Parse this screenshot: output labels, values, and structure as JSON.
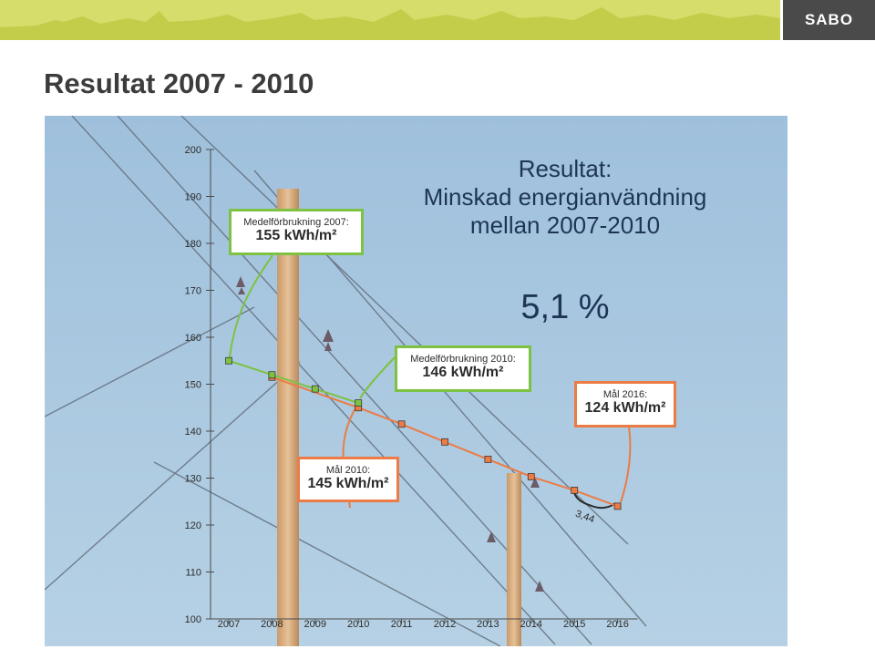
{
  "brand": {
    "logo_text": "SABO"
  },
  "slide": {
    "title": "Resultat 2007 - 2010"
  },
  "headline": {
    "line1": "Resultat:",
    "line2": "Minskad energianvändning",
    "line3": "mellan 2007-2010",
    "percent": "5,1 %"
  },
  "callouts": {
    "medel2007": {
      "label": "Medelförbrukning 2007:",
      "value": "155 kWh/m²"
    },
    "medel2010": {
      "label": "Medelförbrukning 2010:",
      "value": "146 kWh/m²"
    },
    "mal2010": {
      "label": "Mål 2010:",
      "value": "145 kWh/m²"
    },
    "mal2016": {
      "label": "Mål 2016:",
      "value": "124 kWh/m²"
    },
    "gap": "3,44"
  },
  "colors": {
    "green": "#7dc242",
    "orange": "#ec7b45",
    "sky": "#a9c7de",
    "navy": "#1e3556"
  },
  "chart_data": {
    "type": "line",
    "x": [
      2007,
      2008,
      2009,
      2010,
      2011,
      2012,
      2013,
      2014,
      2015,
      2016
    ],
    "ylim": [
      100,
      200
    ],
    "yticks": [
      100,
      110,
      120,
      130,
      140,
      150,
      160,
      170,
      180,
      190,
      200
    ],
    "series": [
      {
        "color": "#7dc242",
        "x": [
          2007,
          2008,
          2009,
          2010
        ],
        "values": [
          155,
          152,
          149,
          146
        ]
      },
      {
        "color": "#ec7b45",
        "x": [
          2008,
          2010,
          2011,
          2012,
          2013,
          2014,
          2015,
          2016
        ],
        "values": [
          151.5,
          145,
          141.5,
          137.7,
          134,
          130.3,
          127.4,
          124
        ]
      }
    ]
  }
}
